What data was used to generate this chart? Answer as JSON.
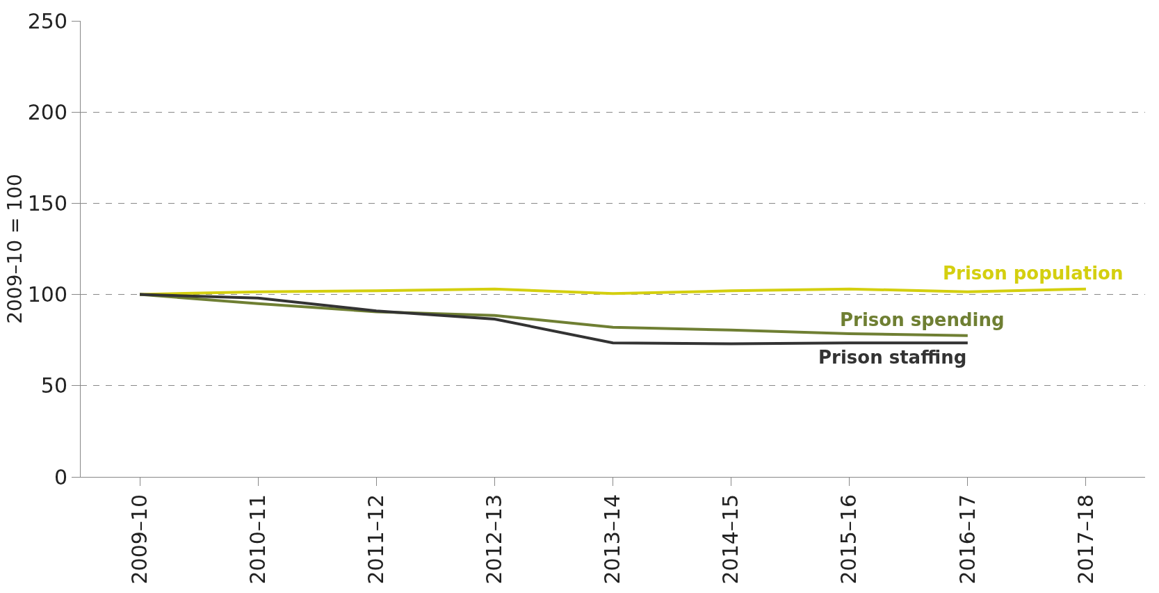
{
  "chart_data": {
    "type": "line",
    "ylabel": "2009–10 = 100",
    "categories": [
      "2009–10",
      "2010–11",
      "2011–12",
      "2012–13",
      "2013–14",
      "2014–15",
      "2015–16",
      "2016–17",
      "2017–18"
    ],
    "series": [
      {
        "name": "Prison population",
        "color": "#d4cf0f",
        "values": [
          100,
          101.5,
          102,
          103,
          100.5,
          102,
          103,
          101.5,
          103
        ]
      },
      {
        "name": "Prison spending",
        "color": "#6f7f33",
        "values": [
          100,
          95,
          90.5,
          88.5,
          82,
          80.5,
          78.5,
          77.5,
          null
        ]
      },
      {
        "name": "Prison staffing",
        "color": "#333333",
        "values": [
          100,
          98,
          91,
          86.5,
          73.5,
          73,
          73.5,
          73.5,
          null
        ]
      }
    ],
    "ylim": [
      0,
      250
    ],
    "yticks": [
      0,
      50,
      100,
      150,
      200,
      250
    ],
    "grid": "y",
    "legend": false,
    "marker": "none",
    "line_style": "solid"
  }
}
